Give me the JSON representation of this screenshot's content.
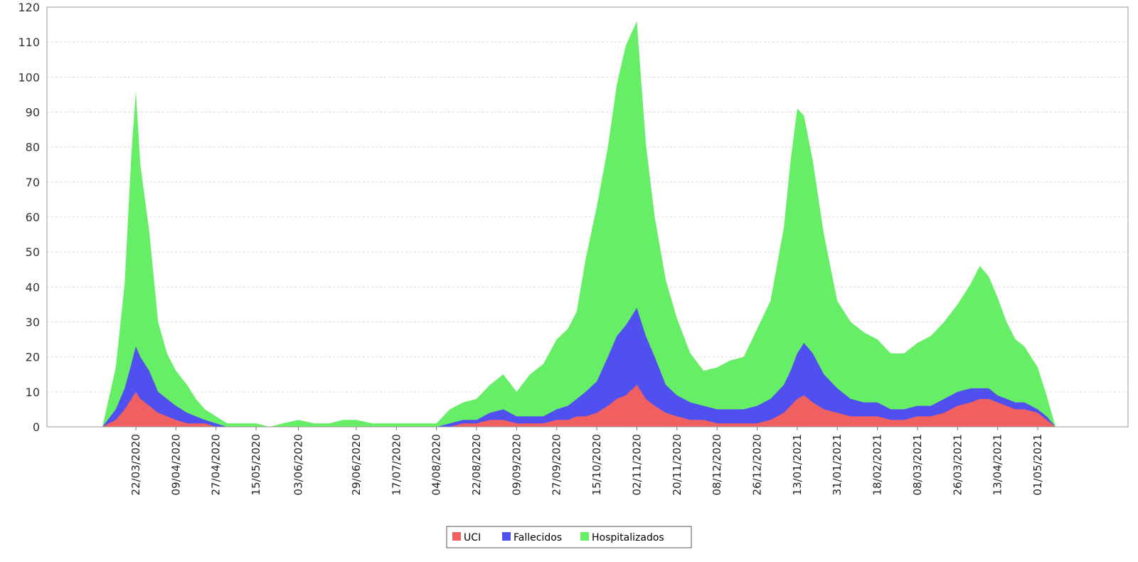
{
  "chart_data": {
    "type": "area",
    "stacked": true,
    "title": "",
    "xlabel": "",
    "ylabel": "",
    "ylim": [
      0,
      120
    ],
    "yticks": [
      0,
      10,
      20,
      30,
      40,
      50,
      60,
      70,
      80,
      90,
      100,
      110,
      120
    ],
    "grid": true,
    "legend_position": "bottom-center",
    "x_tick_labels": [
      "22/03/2020",
      "09/04/2020",
      "27/04/2020",
      "15/05/2020",
      "03/06/2020",
      "29/06/2020",
      "17/07/2020",
      "04/08/2020",
      "22/08/2020",
      "09/09/2020",
      "27/09/2020",
      "15/10/2020",
      "02/11/2020",
      "20/11/2020",
      "08/12/2020",
      "26/12/2020",
      "13/01/2021",
      "31/01/2021",
      "18/02/2021",
      "08/03/2021",
      "26/03/2021",
      "13/04/2021",
      "01/05/2021"
    ],
    "sample_dates": [
      "07/03/2020",
      "13/03/2020",
      "17/03/2020",
      "20/03/2020",
      "22/03/2020",
      "24/03/2020",
      "28/03/2020",
      "01/04/2020",
      "05/04/2020",
      "09/04/2020",
      "14/04/2020",
      "18/04/2020",
      "22/04/2020",
      "27/04/2020",
      "02/05/2020",
      "07/05/2020",
      "15/05/2020",
      "21/05/2020",
      "27/05/2020",
      "03/06/2020",
      "10/06/2020",
      "17/06/2020",
      "23/06/2020",
      "29/06/2020",
      "06/07/2020",
      "11/07/2020",
      "17/07/2020",
      "23/07/2020",
      "29/07/2020",
      "04/08/2020",
      "10/08/2020",
      "16/08/2020",
      "22/08/2020",
      "28/08/2020",
      "03/09/2020",
      "09/09/2020",
      "15/09/2020",
      "21/09/2020",
      "27/09/2020",
      "02/10/2020",
      "06/10/2020",
      "10/10/2020",
      "15/10/2020",
      "20/10/2020",
      "24/10/2020",
      "28/10/2020",
      "02/11/2020",
      "06/11/2020",
      "10/11/2020",
      "15/11/2020",
      "20/11/2020",
      "26/11/2020",
      "02/12/2020",
      "08/12/2020",
      "14/12/2020",
      "20/12/2020",
      "26/12/2020",
      "01/01/2021",
      "07/01/2021",
      "10/01/2021",
      "13/01/2021",
      "16/01/2021",
      "20/01/2021",
      "25/01/2021",
      "31/01/2021",
      "06/02/2021",
      "12/02/2021",
      "18/02/2021",
      "24/02/2021",
      "02/03/2021",
      "08/03/2021",
      "14/03/2021",
      "20/03/2021",
      "26/03/2021",
      "01/04/2021",
      "05/04/2021",
      "09/04/2021",
      "13/04/2021",
      "17/04/2021",
      "21/04/2021",
      "25/04/2021",
      "01/05/2021",
      "05/05/2021",
      "09/05/2021"
    ],
    "series": [
      {
        "name": "UCI",
        "color": "#f06060",
        "values": [
          0,
          2,
          5,
          8,
          10,
          8,
          6,
          4,
          3,
          2,
          1,
          1,
          1,
          0,
          0,
          0,
          0,
          0,
          0,
          0,
          0,
          0,
          0,
          0,
          0,
          0,
          0,
          0,
          0,
          0,
          0,
          1,
          1,
          2,
          2,
          1,
          1,
          1,
          2,
          2,
          3,
          3,
          4,
          6,
          8,
          9,
          12,
          8,
          6,
          4,
          3,
          2,
          2,
          1,
          1,
          1,
          1,
          2,
          4,
          6,
          8,
          9,
          7,
          5,
          4,
          3,
          3,
          3,
          2,
          2,
          3,
          3,
          4,
          6,
          7,
          8,
          8,
          7,
          6,
          5,
          5,
          4,
          2,
          0
        ]
      },
      {
        "name": "Fallecidos",
        "color": "#5050f0",
        "values": [
          0,
          3,
          6,
          10,
          13,
          12,
          10,
          6,
          5,
          4,
          3,
          2,
          1,
          1,
          0,
          0,
          0,
          0,
          0,
          0,
          0,
          0,
          0,
          0,
          0,
          0,
          0,
          0,
          0,
          0,
          1,
          1,
          1,
          2,
          3,
          2,
          2,
          2,
          3,
          4,
          5,
          7,
          9,
          14,
          18,
          20,
          22,
          18,
          14,
          8,
          6,
          5,
          4,
          4,
          4,
          4,
          5,
          6,
          8,
          10,
          13,
          15,
          14,
          10,
          7,
          5,
          4,
          4,
          3,
          3,
          3,
          3,
          4,
          4,
          4,
          3,
          3,
          2,
          2,
          2,
          2,
          1,
          1,
          0
        ]
      },
      {
        "name": "Hospitalizados",
        "color": "#66ee66",
        "values": [
          0,
          12,
          30,
          60,
          73,
          55,
          40,
          20,
          13,
          10,
          8,
          5,
          3,
          2,
          1,
          1,
          1,
          0,
          1,
          2,
          1,
          1,
          2,
          2,
          1,
          1,
          1,
          1,
          1,
          1,
          4,
          5,
          6,
          8,
          10,
          7,
          12,
          15,
          20,
          22,
          25,
          38,
          50,
          60,
          72,
          80,
          82,
          55,
          40,
          30,
          22,
          14,
          10,
          12,
          14,
          15,
          22,
          28,
          45,
          60,
          70,
          65,
          55,
          40,
          25,
          22,
          20,
          18,
          16,
          16,
          18,
          20,
          22,
          25,
          30,
          35,
          32,
          28,
          22,
          18,
          16,
          12,
          6,
          0
        ]
      }
    ]
  }
}
